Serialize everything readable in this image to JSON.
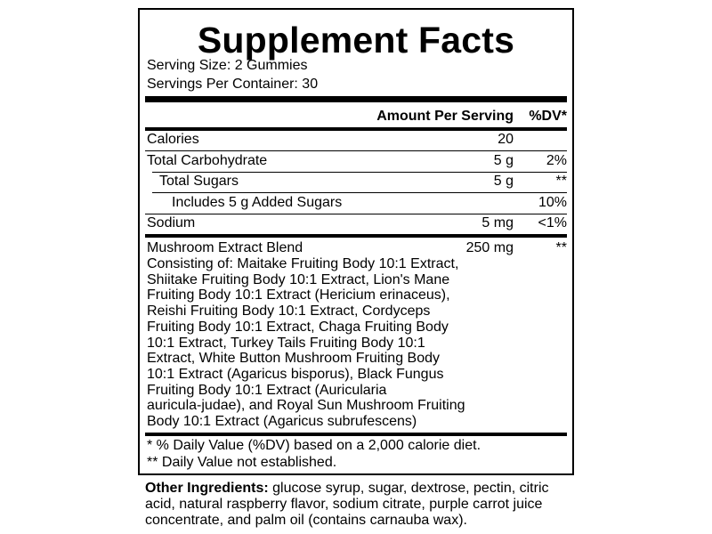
{
  "title": "Supplement Facts",
  "serving_size": "Serving Size: 2 Gummies",
  "servings_per_container": "Servings Per Container: 30",
  "header": {
    "amount": "Amount Per Serving",
    "dv": "%DV*"
  },
  "rows": [
    {
      "name": "Calories",
      "amount": "20",
      "dv": ""
    },
    {
      "name": "Total Carbohydrate",
      "amount": "5 g",
      "dv": "2%"
    },
    {
      "name": "Total Sugars",
      "amount": "5 g",
      "dv": "**"
    },
    {
      "name": "Includes 5 g Added Sugars",
      "amount": "",
      "dv": "10%"
    },
    {
      "name": "Sodium",
      "amount": "5 mg",
      "dv": "<1%"
    }
  ],
  "blend": {
    "name": "Mushroom Extract Blend",
    "amount": "250 mg",
    "dv": "**",
    "lines": [
      "Consisting of: Maitake Fruiting Body 10:1 Extract,",
      "Shiitake Fruiting Body 10:1 Extract, Lion's Mane",
      "Fruiting Body 10:1 Extract (Hericium erinaceus),",
      "Reishi Fruiting Body 10:1 Extract, Cordyceps",
      "Fruiting Body 10:1 Extract, Chaga Fruiting Body",
      "10:1 Extract, Turkey Tails Fruiting Body 10:1",
      "Extract, White Button Mushroom Fruiting Body",
      "10:1 Extract (Agaricus bisporus), Black Fungus",
      "Fruiting Body 10:1 Extract (Auricularia",
      "auricula-judae), and Royal Sun Mushroom Fruiting",
      "Body 10:1 Extract (Agaricus subrufescens)"
    ]
  },
  "footnotes": [
    "* % Daily Value (%DV) based on a 2,000 calorie diet.",
    "** Daily Value not established."
  ],
  "other_ingredients": {
    "label": "Other Ingredients:",
    "text": " glucose syrup, sugar, dextrose, pectin, citric acid, natural raspberry flavor, sodium citrate, purple carrot juice concentrate, and palm oil (contains carnauba wax)."
  }
}
